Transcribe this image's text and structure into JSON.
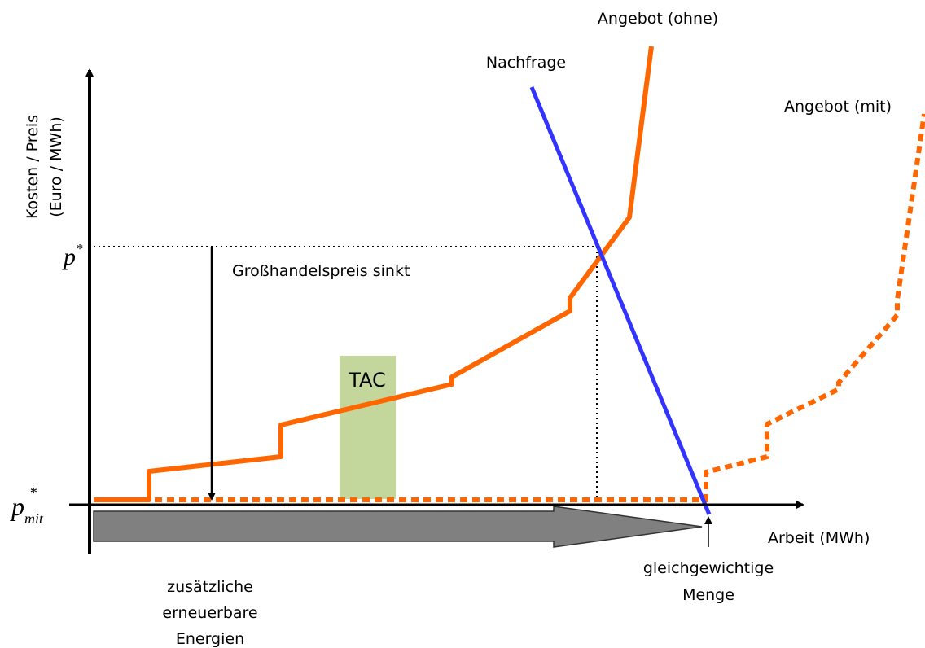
{
  "labels": {
    "supply_without": "Angebot (ohne)",
    "demand": "Nachfrage",
    "supply_with": "Angebot (mit)",
    "y_axis": [
      "Kosten / Preis",
      "(Euro / MWh)"
    ],
    "x_axis": "Arbeit (MWh)",
    "price_drop": "Großhandelspreis sinkt",
    "tac": "TAC",
    "equilibrium_quantity": [
      "gleichgewichtige",
      "Menge"
    ],
    "renewables": [
      "zusätzliche",
      "erneuerbare",
      "Energien"
    ],
    "p_star": {
      "symbol": "p",
      "sup": "*"
    },
    "p_mit": {
      "symbol": "p",
      "sup": "*",
      "sub": "mit"
    }
  }
}
